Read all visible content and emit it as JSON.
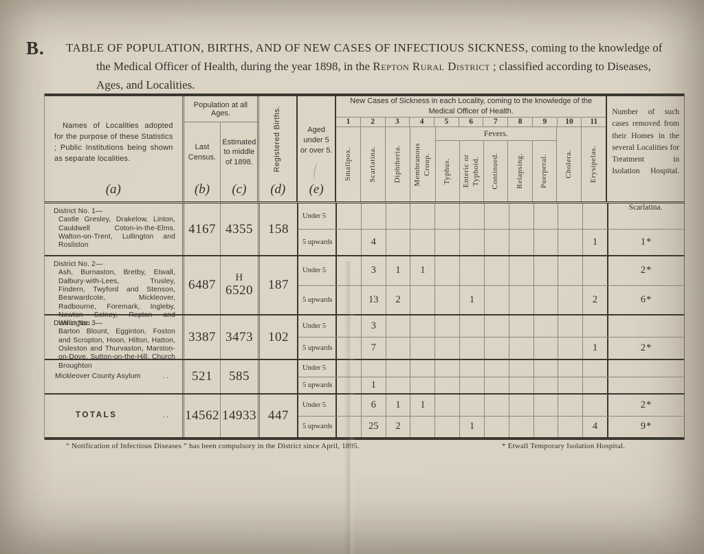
{
  "page": {
    "label": "B.",
    "title": {
      "seg_caps": "TABLE OF POPULATION, BIRTHS, AND OF NEW CASES OF INFECTIOUS SICKNESS,",
      "seg_mid": " coming to the knowledge of the Medical Officer of Health, during the year 1898, in the ",
      "seg_smallcaps": "Repton Rural District",
      "seg_end": " ;  classified according to Diseases, Ages, and Localities."
    },
    "footnotes": {
      "left": "“ Notification of Infectious Diseases ” has been compulsory in the District since April, 1895.",
      "right": "* Etwall Temporary Isolation Hospital."
    }
  },
  "table": {
    "header": {
      "locality_label": "Names of Localities adopted for the purpose of these Statistics ;  Public Institutions being shown as separate localities.",
      "population_group": "Population at all Ages.",
      "last_census": "Last Census.",
      "estimated": "Estimated to middle of 1898.",
      "registered_births": "Registered Births.",
      "aged": "Aged under 5 or over 5.",
      "letters": [
        "(a)",
        "(b)",
        "(c)",
        "(d)",
        "(e)"
      ],
      "new_cases_group": "New Cases of Sickness in each Locality, coming to the knowledge of the Medical Officer of Health.",
      "col_numbers": [
        "1",
        "2",
        "3",
        "4",
        "5",
        "6",
        "7",
        "8",
        "9",
        "10",
        "11"
      ],
      "fevers_group": "Fevers.",
      "diseases": [
        "Smallpox.",
        "Scarlatina.",
        "Diphtheria.",
        "Membranous Croup.",
        "Typhus.",
        "Enteric or Typhoid.",
        "Continued.",
        "Relapsing.",
        "Puerperal.",
        "Cholera.",
        "Erysipelas."
      ],
      "age_labels": [
        "Under 5",
        "5 upwards"
      ],
      "removed_caption": "Number of such cases removed from their Homes in the several Localities for Treatment in Isolation Hospital.",
      "removed_disease": "Scarlatina."
    },
    "rows": [
      {
        "type": "district",
        "name_head": "District No. 1—",
        "name_body": "Castle Gresley, Drakelow, Linton, Cauldwell Coton-in-the-Elms. Walton-on-Trent, Lullington and Rosliston",
        "name_dots": "",
        "census": "4167",
        "estimated_note": "",
        "estimated": "4355",
        "births": "158",
        "under5": [
          "",
          "",
          "",
          "",
          "",
          "",
          "",
          "",
          "",
          "",
          ""
        ],
        "over5": [
          "",
          "4",
          "",
          "",
          "",
          "",
          "",
          "",
          "",
          "",
          "1"
        ],
        "removed_under5": "",
        "removed_over5": "1*"
      },
      {
        "type": "district",
        "name_head": "District No. 2—",
        "name_body": "Ash, Burnaston, Bretby, Etwall, Dalbury-with-Lees, Trusley, Findern, Twyford and Stenson, Bearwardcote, Mickleover, Radbourne, Foremark, Ingleby, Newton Solney, Repton and Willington",
        "name_dots": "..",
        "census": "6487",
        "estimated_note": "H",
        "estimated": "6520",
        "births": "187",
        "under5": [
          "",
          "3",
          "1",
          "1",
          "",
          "",
          "",
          "",
          "",
          "",
          ""
        ],
        "over5": [
          "",
          "13",
          "2",
          "",
          "",
          "1",
          "",
          "",
          "",
          "",
          "2"
        ],
        "removed_under5": "2*",
        "removed_over5": "6*"
      },
      {
        "type": "district",
        "name_head": "District No. 3—",
        "name_body": "Barton Blount, Egginton, Foston and Scropton, Hoon, Hilton, Hatton, Osleston and Thurvaston, Marston-on-Dove, Sutton-on-the-Hill, Church Broughton",
        "name_dots": ".",
        "census": "3387",
        "estimated_note": "",
        "estimated": "3473",
        "births": "102",
        "under5": [
          "",
          "3",
          "",
          "",
          "",
          "",
          "",
          "",
          "",
          "",
          ""
        ],
        "over5": [
          "",
          "7",
          "",
          "",
          "",
          "",
          "",
          "",
          "",
          "",
          "1"
        ],
        "removed_under5": "",
        "removed_over5": "2*"
      },
      {
        "type": "institution",
        "name_head": "Mickleover County Asylum",
        "name_body": "",
        "name_dots": "..",
        "census": "521",
        "estimated_note": "",
        "estimated": "585",
        "births": "",
        "under5": [
          "",
          "",
          "",
          "",
          "",
          "",
          "",
          "",
          "",
          "",
          ""
        ],
        "over5": [
          "",
          "1",
          "",
          "",
          "",
          "",
          "",
          "",
          "",
          "",
          ""
        ],
        "removed_under5": "",
        "removed_over5": ""
      },
      {
        "type": "totals",
        "name_head": "TOTALS",
        "name_body": "",
        "name_dots": "..",
        "census": "14562",
        "estimated_note": "",
        "estimated": "14933",
        "births": "447",
        "under5": [
          "",
          "6",
          "1",
          "1",
          "",
          "",
          "",
          "",
          "",
          "",
          ""
        ],
        "over5": [
          "",
          "25",
          "2",
          "",
          "",
          "1",
          "",
          "",
          "",
          "",
          "4"
        ],
        "removed_under5": "2*",
        "removed_over5": "9*"
      }
    ]
  }
}
